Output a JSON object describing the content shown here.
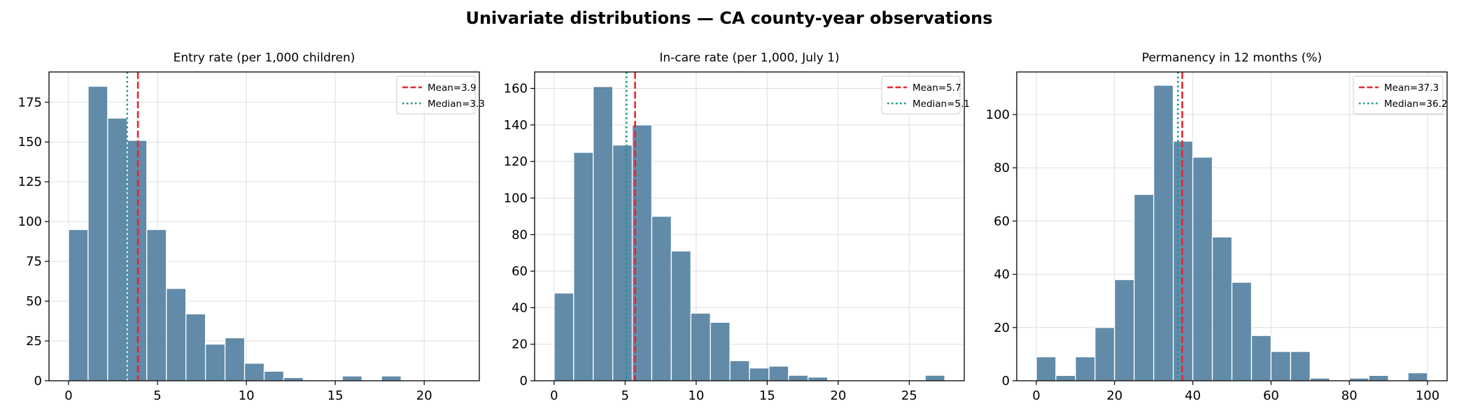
{
  "figure": {
    "title": "Univariate distributions — CA county-year observations"
  },
  "colors": {
    "bar_fill": "#4a7a9b",
    "bar_edge": "#ffffff",
    "mean_line": "#e8262e",
    "median_line": "#159a8c",
    "grid": "#dddddd"
  },
  "chart_data": [
    {
      "type": "bar",
      "title": "Entry rate (per 1,000 children)",
      "bin_edges": [
        0,
        1.1,
        2.2,
        3.3,
        4.4,
        5.5,
        6.6,
        7.7,
        8.8,
        9.9,
        11.0,
        12.1,
        13.2,
        14.3,
        15.4,
        16.5,
        17.6,
        18.7,
        19.8,
        20.9,
        22.0
      ],
      "values": [
        95,
        185,
        165,
        151,
        95,
        58,
        42,
        23,
        27,
        11,
        6,
        2,
        0,
        0,
        3,
        0,
        3,
        0,
        0,
        0
      ],
      "xlim": [
        -1.1,
        23.1
      ],
      "ylim": [
        0,
        194
      ],
      "xticks": [
        0,
        5,
        10,
        15,
        20
      ],
      "xtick_labels": [
        "0",
        "5",
        "10",
        "15",
        "20"
      ],
      "yticks": [
        0,
        25,
        50,
        75,
        100,
        125,
        150,
        175
      ],
      "ytick_labels": [
        "0",
        "25",
        "50",
        "75",
        "100",
        "125",
        "150",
        "175"
      ],
      "mean": 3.9,
      "median": 3.3,
      "legend": [
        "Mean=3.9",
        "Median=3.3"
      ],
      "legend_position": "top-right",
      "grid": true
    },
    {
      "type": "bar",
      "title": "In-care rate (per 1,000, July 1)",
      "bin_edges": [
        0,
        1.375,
        2.75,
        4.125,
        5.5,
        6.875,
        8.25,
        9.625,
        11.0,
        12.375,
        13.75,
        15.125,
        16.5,
        17.875,
        19.25,
        20.625,
        22.0,
        23.375,
        24.75,
        26.125,
        27.5
      ],
      "values": [
        48,
        125,
        161,
        129,
        140,
        90,
        71,
        37,
        32,
        11,
        7,
        8,
        3,
        2,
        0,
        0,
        0,
        0,
        0,
        3
      ],
      "xlim": [
        -1.375,
        28.875
      ],
      "ylim": [
        0,
        169
      ],
      "xticks": [
        0,
        5,
        10,
        15,
        20,
        25
      ],
      "xtick_labels": [
        "0",
        "5",
        "10",
        "15",
        "20",
        "25"
      ],
      "yticks": [
        0,
        20,
        40,
        60,
        80,
        100,
        120,
        140,
        160
      ],
      "ytick_labels": [
        "0",
        "20",
        "40",
        "60",
        "80",
        "100",
        "120",
        "140",
        "160"
      ],
      "mean": 5.7,
      "median": 5.1,
      "legend": [
        "Mean=5.7",
        "Median=5.1"
      ],
      "legend_position": "top-right",
      "grid": true
    },
    {
      "type": "bar",
      "title": "Permanency in 12 months (%)",
      "bin_edges": [
        0,
        5,
        10,
        15,
        20,
        25,
        30,
        35,
        40,
        45,
        50,
        55,
        60,
        65,
        70,
        75,
        80,
        85,
        90,
        95,
        100
      ],
      "values": [
        9,
        2,
        9,
        20,
        38,
        70,
        111,
        90,
        84,
        54,
        37,
        17,
        11,
        11,
        1,
        0,
        1,
        2,
        0,
        3
      ],
      "xlim": [
        -5,
        105
      ],
      "ylim": [
        0,
        116
      ],
      "xticks": [
        0,
        20,
        40,
        60,
        80,
        100
      ],
      "xtick_labels": [
        "0",
        "20",
        "40",
        "60",
        "80",
        "100"
      ],
      "yticks": [
        0,
        20,
        40,
        60,
        80,
        100
      ],
      "ytick_labels": [
        "0",
        "20",
        "40",
        "60",
        "80",
        "100"
      ],
      "mean": 37.3,
      "median": 36.2,
      "legend": [
        "Mean=37.3",
        "Median=36.2"
      ],
      "legend_position": "top-right",
      "grid": true
    }
  ]
}
